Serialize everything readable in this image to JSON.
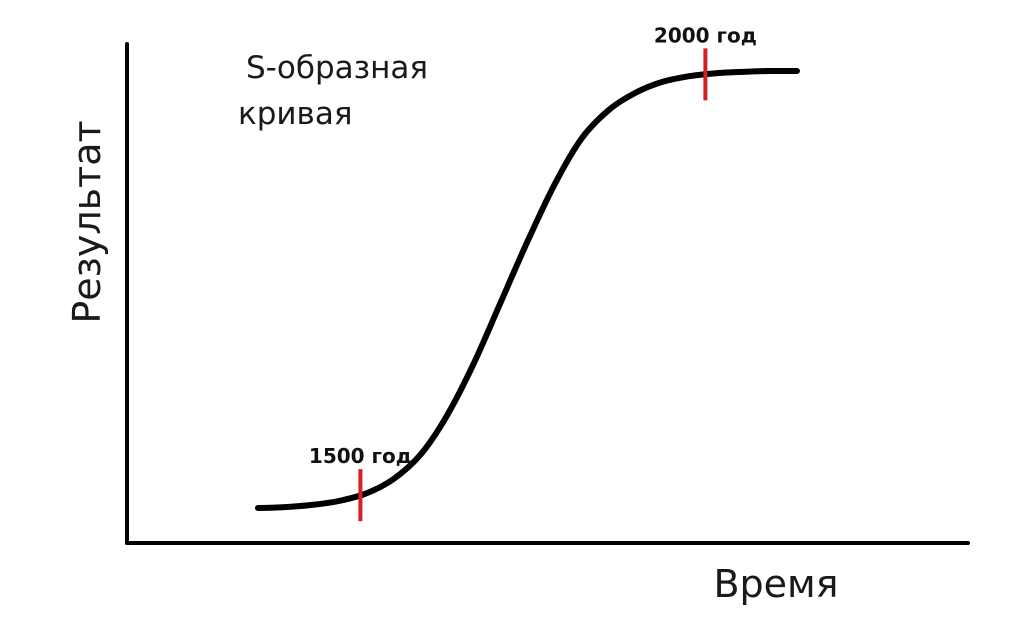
{
  "chart_data": {
    "type": "line",
    "title_lines": [
      "S-образная",
      "кривая"
    ],
    "xlabel": "Время",
    "ylabel": "Результат",
    "grid": false,
    "legend": "none",
    "curve_color": "#000000",
    "marker_color": "#d32027",
    "series": [
      {
        "x": [
          0,
          0.05,
          0.1,
          0.15,
          0.2,
          0.25,
          0.3,
          0.35,
          0.4,
          0.45,
          0.5,
          0.55,
          0.6,
          0.65,
          0.7,
          0.75,
          0.8,
          0.85,
          0.9,
          0.95,
          1.0
        ],
        "values": [
          0.0,
          0.002,
          0.007,
          0.016,
          0.033,
          0.065,
          0.12,
          0.21,
          0.33,
          0.47,
          0.61,
          0.74,
          0.845,
          0.91,
          0.95,
          0.975,
          0.988,
          0.995,
          0.998,
          1.0,
          1.0
        ]
      }
    ],
    "annotations": [
      {
        "label": "1500 год",
        "x": 0.19
      },
      {
        "label": "2000 год",
        "x": 0.83
      }
    ]
  }
}
